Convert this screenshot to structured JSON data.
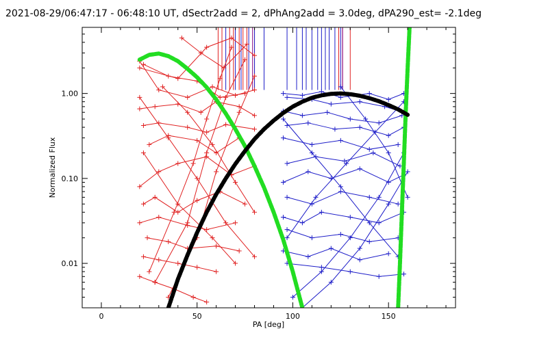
{
  "chart_data": {
    "type": "line",
    "title": "2021-08-29/06:47:17 - 06:48:10 UT, dSectr2add = 2, dPhAng2add = 3.0deg, dPA290_est= -2.1deg",
    "xlabel": "PA [deg]",
    "ylabel": "Normalized Flux",
    "xlim": [
      -10,
      185
    ],
    "ylim": [
      0.003,
      6.0
    ],
    "yscale": "log",
    "x_ticks": [
      0,
      50,
      100,
      150
    ],
    "x_tick_labels": [
      "0",
      "50",
      "100",
      "150"
    ],
    "y_ticks": [
      0.01,
      0.1,
      1.0
    ],
    "y_tick_labels": [
      "0.01",
      "0.10",
      "1.00"
    ],
    "grid": false,
    "colors": {
      "red": "#e02020",
      "blue": "#1c1cc8",
      "green": "#22dd22",
      "black": "#000000",
      "purple": "#800080"
    },
    "series": [
      {
        "color": "red",
        "style": "line+cross",
        "segments": [
          [
            [
              20,
              2.4
            ],
            [
              30,
              1.1
            ],
            [
              45,
              0.9
            ],
            [
              58,
              1.2
            ],
            [
              70,
              0.95
            ],
            [
              80,
              1.1
            ]
          ],
          [
            [
              22,
              2.2
            ],
            [
              35,
              1.6
            ],
            [
              50,
              1.4
            ],
            [
              62,
              0.9
            ],
            [
              75,
              1.0
            ]
          ],
          [
            [
              20,
              0.66
            ],
            [
              28,
              0.7
            ],
            [
              40,
              0.75
            ],
            [
              52,
              0.6
            ],
            [
              60,
              0.8
            ],
            [
              72,
              0.7
            ],
            [
              80,
              0.55
            ]
          ],
          [
            [
              22,
              0.42
            ],
            [
              30,
              0.45
            ],
            [
              45,
              0.4
            ],
            [
              55,
              0.35
            ],
            [
              65,
              0.43
            ],
            [
              80,
              0.38
            ]
          ],
          [
            [
              25,
              0.25
            ],
            [
              35,
              0.32
            ],
            [
              50,
              0.28
            ],
            [
              60,
              0.2
            ],
            [
              72,
              0.3
            ]
          ],
          [
            [
              20,
              0.08
            ],
            [
              30,
              0.12
            ],
            [
              40,
              0.15
            ],
            [
              55,
              0.18
            ],
            [
              68,
              0.11
            ],
            [
              80,
              0.14
            ]
          ],
          [
            [
              22,
              0.05
            ],
            [
              28,
              0.06
            ],
            [
              40,
              0.04
            ],
            [
              50,
              0.055
            ],
            [
              62,
              0.07
            ],
            [
              75,
              0.05
            ]
          ],
          [
            [
              20,
              0.03
            ],
            [
              30,
              0.035
            ],
            [
              45,
              0.028
            ],
            [
              55,
              0.025
            ],
            [
              70,
              0.03
            ]
          ],
          [
            [
              24,
              0.02
            ],
            [
              35,
              0.018
            ],
            [
              45,
              0.015
            ],
            [
              60,
              0.016
            ],
            [
              72,
              0.014
            ]
          ],
          [
            [
              22,
              0.012
            ],
            [
              30,
              0.011
            ],
            [
              40,
              0.01
            ],
            [
              50,
              0.009
            ],
            [
              60,
              0.008
            ]
          ],
          [
            [
              20,
              0.007
            ],
            [
              28,
              0.006
            ],
            [
              38,
              0.005
            ],
            [
              48,
              0.004
            ],
            [
              55,
              0.0035
            ]
          ],
          [
            [
              22,
              0.2
            ],
            [
              40,
              0.05
            ],
            [
              58,
              0.02
            ],
            [
              70,
              0.01
            ]
          ],
          [
            [
              20,
              0.9
            ],
            [
              35,
              0.3
            ],
            [
              50,
              0.1
            ],
            [
              65,
              0.03
            ],
            [
              80,
              0.012
            ]
          ],
          [
            [
              25,
              0.008
            ],
            [
              38,
              0.04
            ],
            [
              48,
              0.15
            ],
            [
              55,
              0.5
            ],
            [
              62,
              1.5
            ],
            [
              68,
              3.5
            ]
          ],
          [
            [
              28,
              0.006
            ],
            [
              45,
              0.03
            ],
            [
              55,
              0.2
            ],
            [
              65,
              0.9
            ],
            [
              75,
              2.5
            ]
          ],
          [
            [
              35,
              0.004
            ],
            [
              50,
              0.02
            ],
            [
              60,
              0.12
            ],
            [
              72,
              0.6
            ],
            [
              80,
              1.6
            ]
          ],
          [
            [
              32,
              1.2
            ],
            [
              45,
              0.6
            ],
            [
              58,
              0.25
            ],
            [
              70,
              0.09
            ],
            [
              80,
              0.04
            ]
          ],
          [
            [
              20,
              2.0
            ],
            [
              40,
              1.5
            ],
            [
              55,
              3.5
            ],
            [
              68,
              4.5
            ],
            [
              80,
              2.8
            ]
          ],
          [
            [
              42,
              4.5
            ],
            [
              52,
              3.0
            ],
            [
              64,
              2.0
            ],
            [
              76,
              3.8
            ]
          ]
        ]
      },
      {
        "color": "blue",
        "style": "line+cross",
        "segments": [
          [
            [
              95,
              1.0
            ],
            [
              105,
              0.95
            ],
            [
              115,
              1.05
            ],
            [
              125,
              0.9
            ],
            [
              140,
              1.0
            ],
            [
              150,
              0.85
            ],
            [
              158,
              1.0
            ]
          ],
          [
            [
              97,
              0.9
            ],
            [
              110,
              0.85
            ],
            [
              120,
              0.75
            ],
            [
              135,
              0.8
            ],
            [
              148,
              0.7
            ],
            [
              158,
              0.6
            ]
          ],
          [
            [
              95,
              0.62
            ],
            [
              105,
              0.55
            ],
            [
              118,
              0.6
            ],
            [
              130,
              0.5
            ],
            [
              145,
              0.45
            ],
            [
              157,
              0.55
            ]
          ],
          [
            [
              97,
              0.42
            ],
            [
              108,
              0.45
            ],
            [
              122,
              0.38
            ],
            [
              135,
              0.4
            ],
            [
              150,
              0.32
            ],
            [
              158,
              0.4
            ]
          ],
          [
            [
              95,
              0.3
            ],
            [
              110,
              0.25
            ],
            [
              125,
              0.28
            ],
            [
              140,
              0.22
            ],
            [
              155,
              0.25
            ]
          ],
          [
            [
              97,
              0.15
            ],
            [
              112,
              0.18
            ],
            [
              127,
              0.16
            ],
            [
              142,
              0.2
            ],
            [
              156,
              0.14
            ]
          ],
          [
            [
              95,
              0.09
            ],
            [
              108,
              0.12
            ],
            [
              120,
              0.1
            ],
            [
              135,
              0.13
            ],
            [
              150,
              0.09
            ],
            [
              158,
              0.11
            ]
          ],
          [
            [
              97,
              0.06
            ],
            [
              110,
              0.05
            ],
            [
              125,
              0.07
            ],
            [
              140,
              0.06
            ],
            [
              155,
              0.05
            ]
          ],
          [
            [
              95,
              0.035
            ],
            [
              105,
              0.03
            ],
            [
              115,
              0.04
            ],
            [
              130,
              0.035
            ],
            [
              145,
              0.03
            ],
            [
              158,
              0.04
            ]
          ],
          [
            [
              97,
              0.025
            ],
            [
              110,
              0.02
            ],
            [
              125,
              0.022
            ],
            [
              140,
              0.018
            ],
            [
              155,
              0.02
            ]
          ],
          [
            [
              95,
              0.014
            ],
            [
              108,
              0.012
            ],
            [
              120,
              0.015
            ],
            [
              135,
              0.011
            ],
            [
              150,
              0.013
            ]
          ],
          [
            [
              97,
              0.01
            ],
            [
              115,
              0.009
            ],
            [
              130,
              0.008
            ],
            [
              145,
              0.007
            ],
            [
              158,
              0.0075
            ]
          ],
          [
            [
              100,
              0.004
            ],
            [
              115,
              0.008
            ],
            [
              130,
              0.02
            ],
            [
              145,
              0.06
            ],
            [
              158,
              0.2
            ]
          ],
          [
            [
              105,
              0.003
            ],
            [
              120,
              0.006
            ],
            [
              135,
              0.015
            ],
            [
              150,
              0.05
            ],
            [
              160,
              0.12
            ]
          ],
          [
            [
              95,
              0.5
            ],
            [
              110,
              0.2
            ],
            [
              125,
              0.08
            ],
            [
              140,
              0.03
            ],
            [
              155,
              0.012
            ]
          ],
          [
            [
              97,
              0.02
            ],
            [
              112,
              0.06
            ],
            [
              128,
              0.15
            ],
            [
              143,
              0.35
            ],
            [
              158,
              0.8
            ]
          ],
          [
            [
              125,
              1.2
            ],
            [
              138,
              0.5
            ],
            [
              150,
              0.2
            ],
            [
              160,
              0.06
            ]
          ]
        ]
      },
      {
        "name": "",
        "color": "green",
        "style": "thick-dashed",
        "points": [
          [
            20,
            2.5
          ],
          [
            25,
            2.85
          ],
          [
            30,
            2.95
          ],
          [
            35,
            2.75
          ],
          [
            40,
            2.4
          ],
          [
            45,
            1.95
          ],
          [
            50,
            1.55
          ],
          [
            55,
            1.18
          ],
          [
            60,
            0.85
          ],
          [
            65,
            0.58
          ],
          [
            70,
            0.38
          ],
          [
            75,
            0.24
          ],
          [
            80,
            0.14
          ],
          [
            85,
            0.078
          ],
          [
            90,
            0.04
          ],
          [
            95,
            0.019
          ],
          [
            100,
            0.008
          ],
          [
            105,
            0.003
          ]
        ]
      },
      {
        "color": "green",
        "style": "thick-dashed",
        "points": [
          [
            155,
            0.003
          ],
          [
            156,
            0.01
          ],
          [
            157,
            0.04
          ],
          [
            158,
            0.15
          ],
          [
            159,
            0.6
          ],
          [
            160,
            2.0
          ],
          [
            161,
            6.0
          ]
        ]
      },
      {
        "color": "black",
        "style": "thick-dashed",
        "points": [
          [
            35,
            0.003
          ],
          [
            40,
            0.0065
          ],
          [
            45,
            0.0125
          ],
          [
            50,
            0.023
          ],
          [
            55,
            0.04
          ],
          [
            60,
            0.065
          ],
          [
            65,
            0.1
          ],
          [
            70,
            0.148
          ],
          [
            75,
            0.21
          ],
          [
            80,
            0.29
          ],
          [
            85,
            0.38
          ],
          [
            90,
            0.48
          ],
          [
            95,
            0.59
          ],
          [
            100,
            0.7
          ],
          [
            105,
            0.8
          ],
          [
            110,
            0.89
          ],
          [
            115,
            0.95
          ],
          [
            120,
            0.99
          ],
          [
            125,
            1.0
          ],
          [
            130,
            0.98
          ],
          [
            135,
            0.94
          ],
          [
            140,
            0.88
          ],
          [
            145,
            0.81
          ],
          [
            150,
            0.73
          ],
          [
            155,
            0.65
          ],
          [
            160,
            0.56
          ]
        ]
      }
    ],
    "top_bars": {
      "y_bottom": 1.1,
      "red": [
        61,
        63,
        67,
        69,
        72,
        74,
        76,
        80,
        124,
        126,
        130
      ],
      "blue": [
        65,
        70,
        73,
        77,
        80,
        85,
        97,
        102,
        105,
        107,
        110,
        113,
        115,
        117,
        119,
        122,
        125
      ],
      "purple": [
        79,
        126
      ]
    }
  }
}
